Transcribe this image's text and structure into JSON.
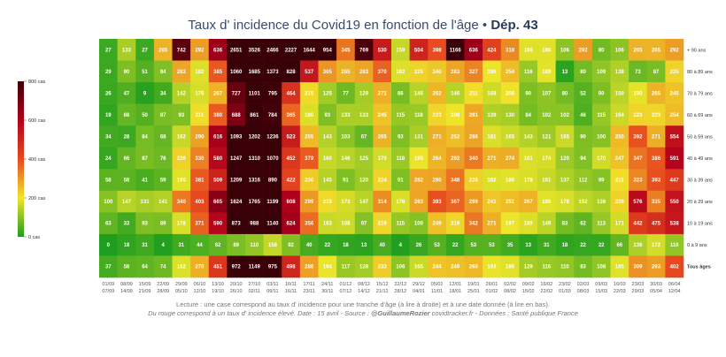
{
  "title": {
    "main": "Taux d' incidence du Covid19 en fonction de l'âge",
    "sep": " • ",
    "dept": "Dép. 43"
  },
  "footer": {
    "line1": "Lecture : une case correspond au taux d' incidence pour une tranche d'âge (à lire à droite) et à une date donnée (à lire en bas).",
    "line2a": "Du rouge correspond à un taux d' incidence élevé.  Date : 15 avril - Source : ",
    "author": "@GuillaumeRozier",
    "line2b": " covidtracker.fr - Données : Santé publique France"
  },
  "chart_data": {
    "type": "heatmap",
    "title": "Taux d' incidence du Covid19 en fonction de l'âge • Dép. 43",
    "colorscale": {
      "min": 0,
      "max": 800,
      "ticks": [
        "0 cas",
        "200 cas",
        "400 cas",
        "600 cas",
        "800 cas"
      ],
      "tick_values": [
        0,
        200,
        400,
        600,
        800
      ],
      "colors": [
        "#1e9e1e",
        "#f0e62a",
        "#e84a1e",
        "#b3001b",
        "#3a0008"
      ]
    },
    "x_top": [
      "01/09",
      "08/09",
      "15/09",
      "22/09",
      "29/09",
      "06/10",
      "13/10",
      "20/10",
      "27/10",
      "03/11",
      "10/11",
      "17/11",
      "24/11",
      "01/12",
      "08/12",
      "15/12",
      "22/12",
      "29/12",
      "05/01",
      "12/01",
      "19/01",
      "26/01",
      "02/02",
      "09/02",
      "16/02",
      "23/02",
      "02/03",
      "09/03",
      "16/03",
      "23/03",
      "30/03",
      "06/04"
    ],
    "x_bottom": [
      "07/09",
      "14/09",
      "21/09",
      "28/09",
      "05/10",
      "12/10",
      "19/10",
      "26/10",
      "02/11",
      "09/11",
      "16/11",
      "23/11",
      "30/11",
      "07/12",
      "14/12",
      "21/12",
      "28/12",
      "04/01",
      "11/01",
      "18/01",
      "25/01",
      "01/02",
      "08/02",
      "15/02",
      "22/02",
      "01/03",
      "08/03",
      "15/03",
      "22/03",
      "29/03",
      "05/04",
      "12/04"
    ],
    "y": [
      "+ 90 ans",
      "80 à 89 ans",
      "70 à 79 ans",
      "60 à 69 ans",
      "50 à 59 ans",
      "40 à 49 ans",
      "30 à 39 ans",
      "20 à 29 ans",
      "10 à 19 ans",
      "0 à 9 ans",
      "Tous âges"
    ],
    "values": [
      [
        27,
        133,
        27,
        265,
        742,
        292,
        636,
        2651,
        3526,
        2466,
        2227,
        1644,
        954,
        345,
        769,
        530,
        159,
        504,
        398,
        1166,
        636,
        424,
        318,
        186,
        186,
        106,
        292,
        80,
        106,
        265,
        265,
        292
      ],
      [
        29,
        90,
        51,
        94,
        283,
        182,
        385,
        1060,
        1685,
        1373,
        828,
        537,
        305,
        265,
        283,
        370,
        182,
        225,
        240,
        283,
        327,
        196,
        254,
        116,
        189,
        13,
        80,
        109,
        138,
        73,
        87,
        225
      ],
      [
        26,
        47,
        9,
        34,
        142,
        176,
        267,
        727,
        1101,
        795,
        464,
        215,
        125,
        77,
        129,
        271,
        86,
        146,
        262,
        146,
        211,
        168,
        206,
        90,
        107,
        80,
        52,
        90,
        150,
        190,
        265,
        245
      ],
      [
        19,
        68,
        50,
        87,
        93,
        211,
        380,
        688,
        861,
        784,
        365,
        180,
        93,
        133,
        133,
        245,
        115,
        118,
        223,
        198,
        281,
        139,
        130,
        84,
        102,
        102,
        46,
        115,
        164,
        223,
        223,
        254
      ],
      [
        34,
        28,
        84,
        68,
        162,
        290,
        616,
        1093,
        1202,
        1236,
        523,
        255,
        143,
        103,
        67,
        265,
        93,
        131,
        271,
        252,
        286,
        181,
        165,
        143,
        121,
        165,
        90,
        100,
        255,
        392,
        271,
        554
      ],
      [
        24,
        66,
        87,
        76,
        226,
        330,
        580,
        1247,
        1310,
        1070,
        452,
        379,
        160,
        146,
        125,
        170,
        118,
        195,
        264,
        292,
        340,
        271,
        274,
        181,
        174,
        120,
        94,
        170,
        247,
        347,
        386,
        591
      ],
      [
        58,
        58,
        41,
        59,
        186,
        381,
        509,
        1209,
        1316,
        890,
        422,
        236,
        145,
        91,
        120,
        224,
        91,
        282,
        286,
        348,
        228,
        182,
        186,
        178,
        161,
        137,
        112,
        99,
        211,
        323,
        393,
        447
      ],
      [
        100,
        147,
        131,
        141,
        340,
        403,
        665,
        1624,
        1765,
        1199,
        608,
        299,
        215,
        173,
        147,
        314,
        178,
        283,
        393,
        367,
        299,
        241,
        251,
        267,
        185,
        178,
        152,
        136,
        226,
        576,
        335,
        550
      ],
      [
        63,
        33,
        93,
        89,
        178,
        371,
        590,
        873,
        988,
        1140,
        624,
        356,
        163,
        168,
        97,
        219,
        115,
        100,
        249,
        219,
        342,
        271,
        197,
        180,
        149,
        83,
        62,
        113,
        171,
        442,
        475,
        538
      ],
      [
        0,
        18,
        31,
        4,
        31,
        44,
        62,
        89,
        110,
        158,
        92,
        40,
        22,
        18,
        13,
        40,
        4,
        26,
        53,
        22,
        53,
        53,
        35,
        13,
        31,
        18,
        22,
        22,
        66,
        136,
        172,
        110
      ],
      [
        37,
        58,
        64,
        74,
        182,
        270,
        451,
        972,
        1149,
        975,
        498,
        288,
        194,
        117,
        128,
        233,
        106,
        165,
        244,
        249,
        260,
        193,
        186,
        129,
        116,
        110,
        83,
        108,
        185,
        309,
        293,
        402
      ]
    ]
  }
}
